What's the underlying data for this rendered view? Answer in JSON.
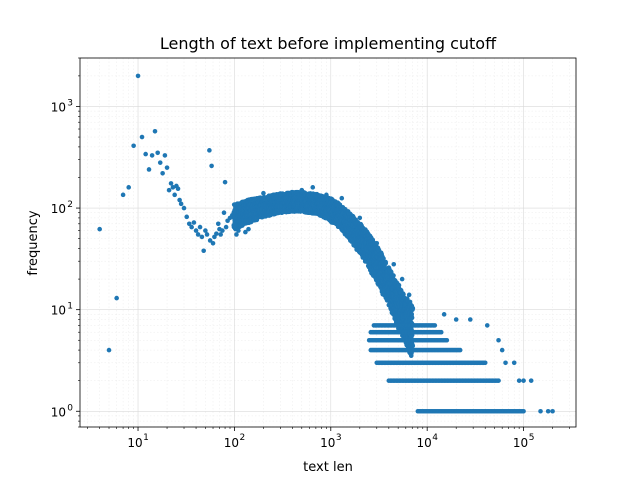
{
  "chart_data": {
    "type": "scatter",
    "title": "Length of text before implementing cutoff",
    "xlabel": "text len",
    "ylabel": "frequency",
    "xscale": "log",
    "yscale": "log",
    "xlim": [
      2.5,
      350000
    ],
    "ylim": [
      0.7,
      3000
    ],
    "grid": "major and minor, light",
    "x_ticks": [
      {
        "base": "10",
        "exp": "1",
        "value": 10
      },
      {
        "base": "10",
        "exp": "2",
        "value": 100
      },
      {
        "base": "10",
        "exp": "3",
        "value": 1000
      },
      {
        "base": "10",
        "exp": "4",
        "value": 10000
      },
      {
        "base": "10",
        "exp": "5",
        "value": 100000
      }
    ],
    "y_ticks": [
      {
        "base": "10",
        "exp": "0",
        "value": 1
      },
      {
        "base": "10",
        "exp": "1",
        "value": 10
      },
      {
        "base": "10",
        "exp": "2",
        "value": 100
      },
      {
        "base": "10",
        "exp": "3",
        "value": 1000
      }
    ],
    "marker_color": "#1f77b4",
    "points": [
      [
        4,
        62
      ],
      [
        5,
        4
      ],
      [
        6,
        13
      ],
      [
        7,
        135
      ],
      [
        8,
        160
      ],
      [
        9,
        410
      ],
      [
        10,
        2000
      ],
      [
        11,
        500
      ],
      [
        12,
        340
      ],
      [
        13,
        240
      ],
      [
        14,
        330
      ],
      [
        15,
        570
      ],
      [
        16,
        350
      ],
      [
        17,
        280
      ],
      [
        18,
        220
      ],
      [
        19,
        330
      ],
      [
        20,
        250
      ],
      [
        21,
        150
      ],
      [
        22,
        175
      ],
      [
        23,
        160
      ],
      [
        24,
        135
      ],
      [
        25,
        165
      ],
      [
        26,
        155
      ],
      [
        27,
        120
      ],
      [
        28,
        110
      ],
      [
        30,
        100
      ],
      [
        32,
        82
      ],
      [
        34,
        70
      ],
      [
        36,
        65
      ],
      [
        38,
        72
      ],
      [
        40,
        60
      ],
      [
        42,
        55
      ],
      [
        44,
        65
      ],
      [
        46,
        52
      ],
      [
        48,
        38
      ],
      [
        50,
        60
      ],
      [
        52,
        55
      ],
      [
        55,
        370
      ],
      [
        56,
        48
      ],
      [
        58,
        260
      ],
      [
        60,
        45
      ],
      [
        62,
        52
      ],
      [
        65,
        56
      ],
      [
        68,
        70
      ],
      [
        70,
        62
      ],
      [
        72,
        55
      ],
      [
        75,
        60
      ],
      [
        78,
        90
      ],
      [
        80,
        180
      ],
      [
        82,
        65
      ],
      [
        85,
        75
      ],
      [
        90,
        80
      ],
      [
        95,
        85
      ],
      [
        100,
        82
      ]
    ],
    "band_points": [
      [
        100,
        82
      ],
      [
        120,
        88
      ],
      [
        150,
        95
      ],
      [
        200,
        102
      ],
      [
        250,
        108
      ],
      [
        300,
        112
      ],
      [
        400,
        115
      ],
      [
        500,
        115
      ],
      [
        600,
        112
      ],
      [
        700,
        110
      ],
      [
        800,
        105
      ],
      [
        1000,
        96
      ],
      [
        1200,
        85
      ],
      [
        1500,
        70
      ],
      [
        2000,
        50
      ],
      [
        2500,
        38
      ],
      [
        3000,
        28
      ],
      [
        4000,
        17
      ],
      [
        5000,
        11
      ],
      [
        6000,
        8
      ],
      [
        7000,
        6
      ]
    ],
    "band_spread": [
      1.35,
      1.3,
      1.3,
      1.25,
      1.25,
      1.25,
      1.25,
      1.25,
      1.25,
      1.25,
      1.25,
      1.3,
      1.3,
      1.35,
      1.4,
      1.45,
      1.5,
      1.55,
      1.6,
      1.7,
      1.8
    ],
    "band_outliers": [
      [
        105,
        55
      ],
      [
        110,
        60
      ],
      [
        130,
        58
      ],
      [
        140,
        62
      ],
      [
        200,
        140
      ],
      [
        300,
        135
      ],
      [
        500,
        150
      ],
      [
        650,
        160
      ],
      [
        900,
        135
      ],
      [
        1300,
        125
      ],
      [
        2000,
        80
      ],
      [
        3000,
        45
      ],
      [
        4500,
        28
      ],
      [
        5500,
        20
      ],
      [
        6500,
        14
      ]
    ],
    "discrete_levels": [
      {
        "y": 7,
        "x_from": 2800,
        "x_to": 12000
      },
      {
        "y": 6,
        "x_from": 2600,
        "x_to": 14000
      },
      {
        "y": 5,
        "x_from": 2500,
        "x_to": 16000
      },
      {
        "y": 4,
        "x_from": 2600,
        "x_to": 22000
      },
      {
        "y": 3,
        "x_from": 3000,
        "x_to": 40000
      },
      {
        "y": 2,
        "x_from": 4000,
        "x_to": 55000
      },
      {
        "y": 1,
        "x_from": 8000,
        "x_to": 100000
      }
    ],
    "level_outliers": [
      [
        15000,
        9
      ],
      [
        20000,
        8
      ],
      [
        28000,
        8
      ],
      [
        42000,
        7
      ],
      [
        55000,
        5
      ],
      [
        60000,
        4
      ],
      [
        65000,
        3
      ],
      [
        80000,
        3
      ],
      [
        90000,
        2
      ],
      [
        100000,
        2
      ],
      [
        120000,
        2
      ],
      [
        150000,
        1
      ],
      [
        180000,
        1
      ],
      [
        200000,
        1
      ]
    ]
  }
}
